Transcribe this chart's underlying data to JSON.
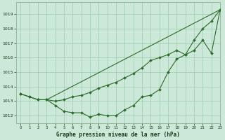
{
  "background_color": "#cce8d8",
  "plot_bg_color": "#cce8d8",
  "grid_color": "#99ccaa",
  "line_color": "#2d6a2d",
  "title": "Graphe pression niveau de la mer (hPa)",
  "xlim": [
    -0.5,
    23
  ],
  "ylim": [
    1011.5,
    1019.8
  ],
  "yticks": [
    1012,
    1013,
    1014,
    1015,
    1016,
    1017,
    1018,
    1019
  ],
  "xticks": [
    0,
    1,
    2,
    3,
    4,
    5,
    6,
    7,
    8,
    9,
    10,
    11,
    12,
    13,
    14,
    15,
    16,
    17,
    18,
    19,
    20,
    21,
    22,
    23
  ],
  "series": [
    {
      "x": [
        0,
        1,
        2,
        3,
        4,
        5,
        6,
        7,
        8,
        9,
        10,
        11,
        12,
        13,
        14,
        15,
        16,
        17,
        18,
        19,
        20,
        21,
        22,
        23
      ],
      "y": [
        1013.5,
        1013.3,
        1013.1,
        1013.1,
        1012.7,
        1012.3,
        1012.2,
        1012.2,
        1011.9,
        1012.1,
        1012.0,
        1012.0,
        1012.4,
        1012.7,
        1013.3,
        1013.4,
        1013.8,
        1015.0,
        1015.9,
        1016.2,
        1017.2,
        1018.0,
        1018.5,
        1019.3
      ],
      "has_markers": true
    },
    {
      "x": [
        0,
        1,
        2,
        3,
        4,
        5,
        6,
        7,
        8,
        9,
        10,
        11,
        12,
        13,
        14,
        15,
        16,
        17,
        18,
        19,
        20,
        21,
        22,
        23
      ],
      "y": [
        1013.5,
        1013.3,
        1013.1,
        1013.1,
        1013.0,
        1013.1,
        1013.3,
        1013.4,
        1013.6,
        1013.9,
        1014.1,
        1014.3,
        1014.6,
        1014.9,
        1015.3,
        1015.8,
        1016.0,
        1016.2,
        1016.5,
        1016.2,
        1016.5,
        1017.2,
        1016.3,
        1019.3
      ],
      "has_markers": true
    },
    {
      "x": [
        3,
        23
      ],
      "y": [
        1013.1,
        1019.3
      ],
      "has_markers": false
    }
  ]
}
